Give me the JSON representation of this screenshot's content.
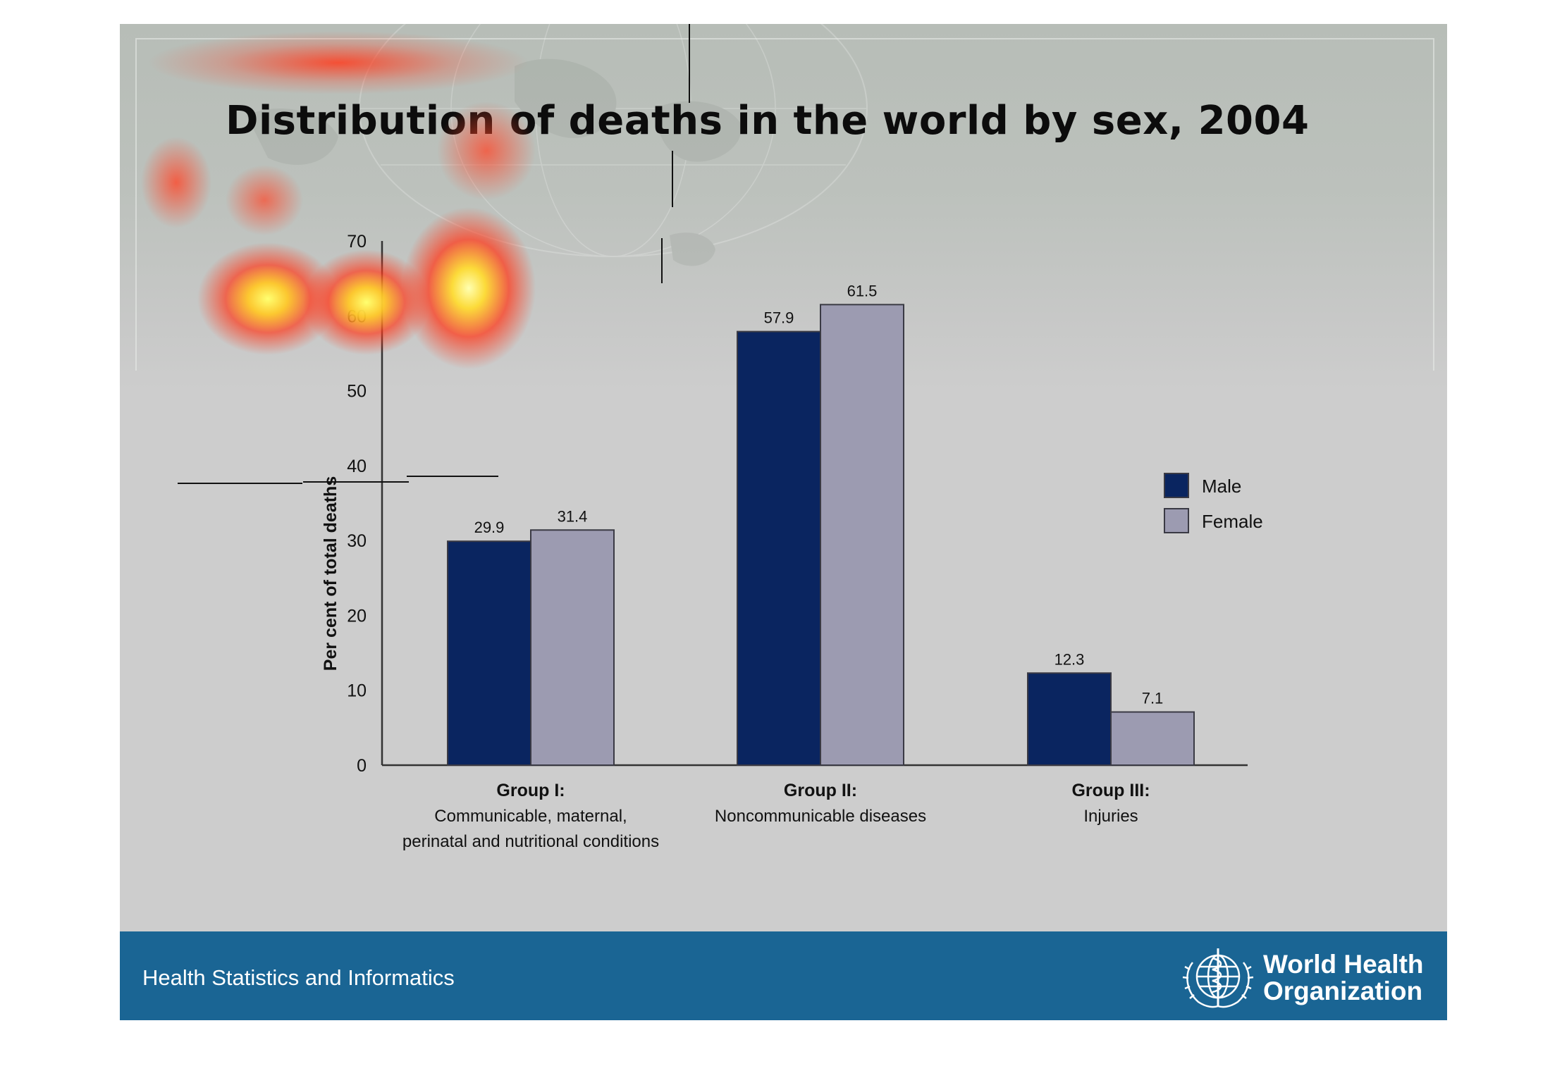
{
  "slide": {
    "title": "Distribution of deaths in the world by sex, 2004",
    "footer_text": "Health Statistics and Informatics",
    "logo_text_line1": "World Health",
    "logo_text_line2": "Organization"
  },
  "colors": {
    "male": "#0a2560",
    "female": "#9c9bb1",
    "footer": "#1a6594",
    "axis": "#333333"
  },
  "chart_data": {
    "type": "bar",
    "title": "Distribution of deaths in the world by sex, 2004",
    "xlabel": "",
    "ylabel": "Per cent of total deaths",
    "ylim": [
      0,
      70
    ],
    "yticks": [
      0,
      10,
      20,
      30,
      40,
      50,
      60,
      70
    ],
    "grid": false,
    "legend_position": "right",
    "categories": [
      {
        "title": "Group I:",
        "subtitle": [
          "Communicable, maternal,",
          "perinatal and nutritional conditions"
        ]
      },
      {
        "title": "Group II:",
        "subtitle": [
          "Noncommunicable diseases"
        ]
      },
      {
        "title": "Group III:",
        "subtitle": [
          "Injuries"
        ]
      }
    ],
    "series": [
      {
        "name": "Male",
        "values": [
          29.9,
          57.9,
          12.3
        ]
      },
      {
        "name": "Female",
        "values": [
          31.4,
          61.5,
          7.1
        ]
      }
    ]
  }
}
